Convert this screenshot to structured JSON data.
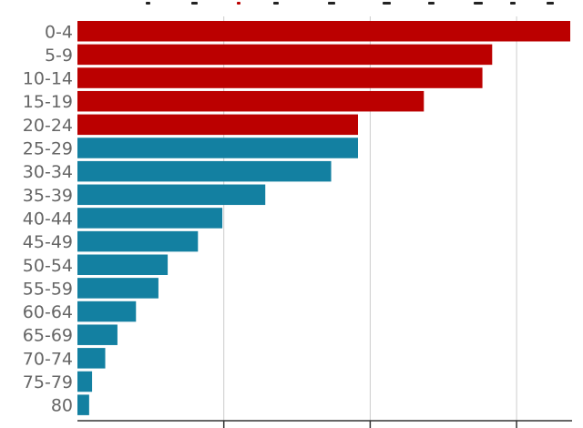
{
  "chart_data": {
    "type": "bar",
    "orientation": "horizontal",
    "categories": [
      "0-4",
      "5-9",
      "10-14",
      "15-19",
      "20-24",
      "25-29",
      "30-34",
      "35-39",
      "40-44",
      "45-49",
      "50-54",
      "55-59",
      "60-64",
      "65-69",
      "70-74",
      "75-79",
      "80"
    ],
    "values": [
      10.1,
      8.5,
      8.3,
      7.1,
      5.75,
      5.75,
      5.2,
      3.85,
      2.97,
      2.47,
      1.85,
      1.66,
      1.2,
      0.82,
      0.57,
      0.3,
      0.24
    ],
    "highlight_count": 5,
    "xlim": [
      0,
      10.1
    ],
    "gridlines": [
      0,
      3,
      6,
      9
    ],
    "grid": true,
    "title": "",
    "xlabel": "",
    "ylabel": "",
    "colors": {
      "highlight": "#bb0000",
      "normal": "#1380a1",
      "grid": "#cccccc",
      "axis": "#333333",
      "label": "#666666"
    }
  }
}
